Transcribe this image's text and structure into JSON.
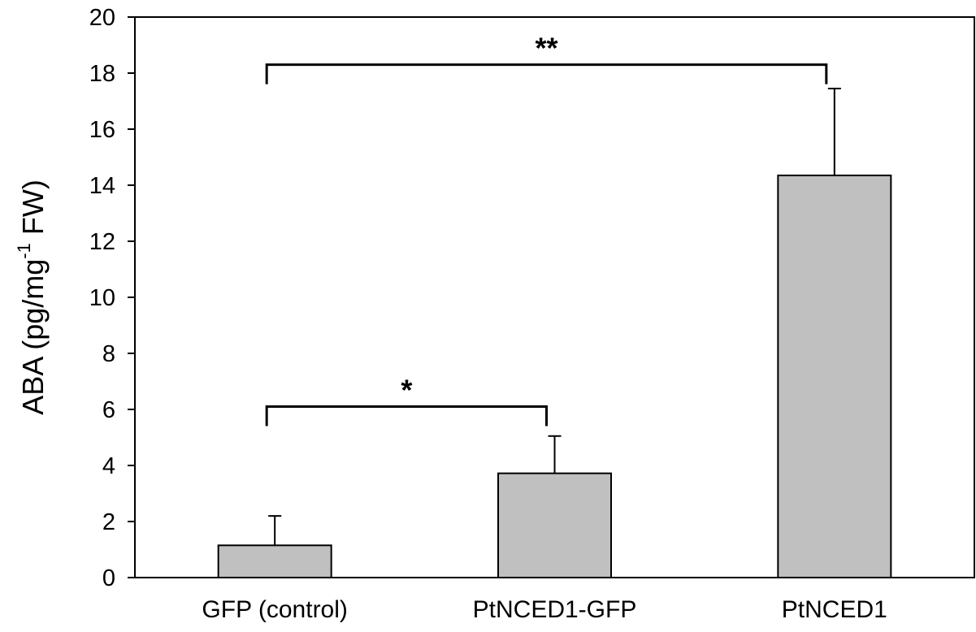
{
  "chart_data": {
    "type": "bar",
    "categories": [
      "GFP (control)",
      "PtNCED1-GFP",
      "PtNCED1"
    ],
    "values": [
      1.15,
      3.72,
      14.35
    ],
    "errors": [
      1.05,
      1.33,
      3.1
    ],
    "xlabel": "",
    "ylabel_parts": {
      "main": "ABA (pg/mg",
      "sup": "-1",
      "tail": " FW)"
    },
    "ylim": [
      0,
      20
    ],
    "yticks": [
      "0",
      "2",
      "4",
      "6",
      "8",
      "10",
      "12",
      "14",
      "16",
      "18",
      "20"
    ],
    "grid": false,
    "bar_color": "#c0c0c0",
    "significance": [
      {
        "from": 0,
        "to": 1,
        "height": 6.1,
        "label": "*"
      },
      {
        "from": 0,
        "to": 2,
        "height": 18.3,
        "label": "**"
      }
    ]
  }
}
